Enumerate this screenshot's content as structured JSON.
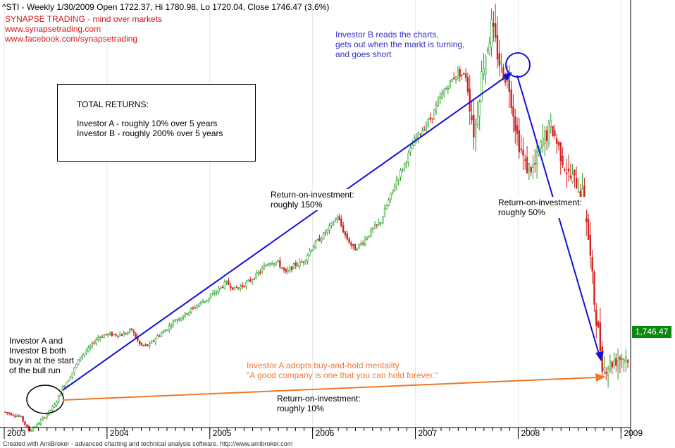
{
  "header": {
    "quote": "^STI - Weekly 1/30/2009 Open 1722.37, Hi 1780.98, Lo 1720.04, Close 1746.47 (3.6%)",
    "brand": "SYNAPSE TRADING - mind over markets",
    "site": "www.synapsetrading.com",
    "facebook": "www.facebook.com/synapsetrading"
  },
  "returns_box": {
    "title": "TOTAL RETURNS:",
    "line_a": "Investor A - roughly 10% over 5 years",
    "line_b": "Investor B - roughly 200% over 5 years"
  },
  "annotations": {
    "investor_b_exit": [
      "Investor B reads the charts,",
      "gets out when the markt is turning,",
      "and goes short"
    ],
    "roi_150": [
      "Return-on-investment:",
      "roughly 150%"
    ],
    "roi_50": [
      "Return-on-investment:",
      "roughly 50%"
    ],
    "buy_in": [
      "Investor A and",
      "Investor B both",
      "buy in at the start",
      "of the bull run"
    ],
    "buy_hold": [
      "Investor A adopts buy-and-hold mentality",
      "\"A good company is one that you can hold forever.\""
    ],
    "roi_10": [
      "Return-on-investment:",
      "roughly 10%"
    ]
  },
  "price_tag": "1,746.47",
  "footer": "Created with AmiBroker - advanced charting and technical analysis software. http://www.amibroker.com",
  "colors": {
    "up": "#1e9e1e",
    "down": "#d42020",
    "blue_arrow": "#1010d8",
    "orange_arrow": "#f07828",
    "brand": "#d81818",
    "annotation_blue": "#3030c8",
    "annotation_orange": "#f07838"
  },
  "chart_data": {
    "type": "candlestick",
    "symbol": "^STI",
    "period": "Weekly",
    "x_ticks": [
      "2003",
      "2004",
      "2005",
      "2006",
      "2007",
      "2008",
      "2009"
    ],
    "ylim": [
      1300,
      3950
    ],
    "last_close": 1746.47,
    "path": [
      [
        "2003-01",
        1400
      ],
      [
        "2003-03",
        1370
      ],
      [
        "2003-04",
        1280
      ],
      [
        "2003-05",
        1320
      ],
      [
        "2003-07",
        1440
      ],
      [
        "2003-08",
        1560
      ],
      [
        "2003-09",
        1640
      ],
      [
        "2003-10",
        1750
      ],
      [
        "2003-11",
        1800
      ],
      [
        "2003-12",
        1870
      ],
      [
        "2004-01",
        1890
      ],
      [
        "2004-03",
        1890
      ],
      [
        "2004-04",
        1920
      ],
      [
        "2004-05",
        1820
      ],
      [
        "2004-06",
        1820
      ],
      [
        "2004-07",
        1880
      ],
      [
        "2004-08",
        1920
      ],
      [
        "2004-09",
        1980
      ],
      [
        "2004-10",
        2010
      ],
      [
        "2004-11",
        2050
      ],
      [
        "2004-12",
        2090
      ],
      [
        "2005-01",
        2120
      ],
      [
        "2005-02",
        2170
      ],
      [
        "2005-03",
        2220
      ],
      [
        "2005-04",
        2180
      ],
      [
        "2005-05",
        2200
      ],
      [
        "2005-06",
        2240
      ],
      [
        "2005-07",
        2290
      ],
      [
        "2005-08",
        2350
      ],
      [
        "2005-09",
        2350
      ],
      [
        "2005-10",
        2280
      ],
      [
        "2005-11",
        2330
      ],
      [
        "2005-12",
        2350
      ],
      [
        "2006-01",
        2440
      ],
      [
        "2006-02",
        2500
      ],
      [
        "2006-03",
        2560
      ],
      [
        "2006-04",
        2640
      ],
      [
        "2006-05",
        2510
      ],
      [
        "2006-06",
        2430
      ],
      [
        "2006-07",
        2480
      ],
      [
        "2006-08",
        2550
      ],
      [
        "2006-09",
        2600
      ],
      [
        "2006-10",
        2740
      ],
      [
        "2006-11",
        2880
      ],
      [
        "2006-12",
        2990
      ],
      [
        "2007-01",
        3120
      ],
      [
        "2007-03",
        3270
      ],
      [
        "2007-04",
        3390
      ],
      [
        "2007-05",
        3480
      ],
      [
        "2007-06",
        3550
      ],
      [
        "2007-07",
        3530
      ],
      [
        "2007-08",
        3150
      ],
      [
        "2007-09",
        3600
      ],
      [
        "2007-10",
        3840
      ],
      [
        "2007-11",
        3600
      ],
      [
        "2007-12",
        3500
      ],
      [
        "2008-01",
        3150
      ],
      [
        "2008-02",
        2950
      ],
      [
        "2008-03",
        2950
      ],
      [
        "2008-04",
        3120
      ],
      [
        "2008-05",
        3210
      ],
      [
        "2008-06",
        3050
      ],
      [
        "2008-07",
        2900
      ],
      [
        "2008-08",
        2850
      ],
      [
        "2008-09",
        2680
      ],
      [
        "2008-10",
        2100
      ],
      [
        "2008-11",
        1670
      ],
      [
        "2008-12",
        1710
      ],
      [
        "2009-01",
        1746
      ]
    ]
  }
}
